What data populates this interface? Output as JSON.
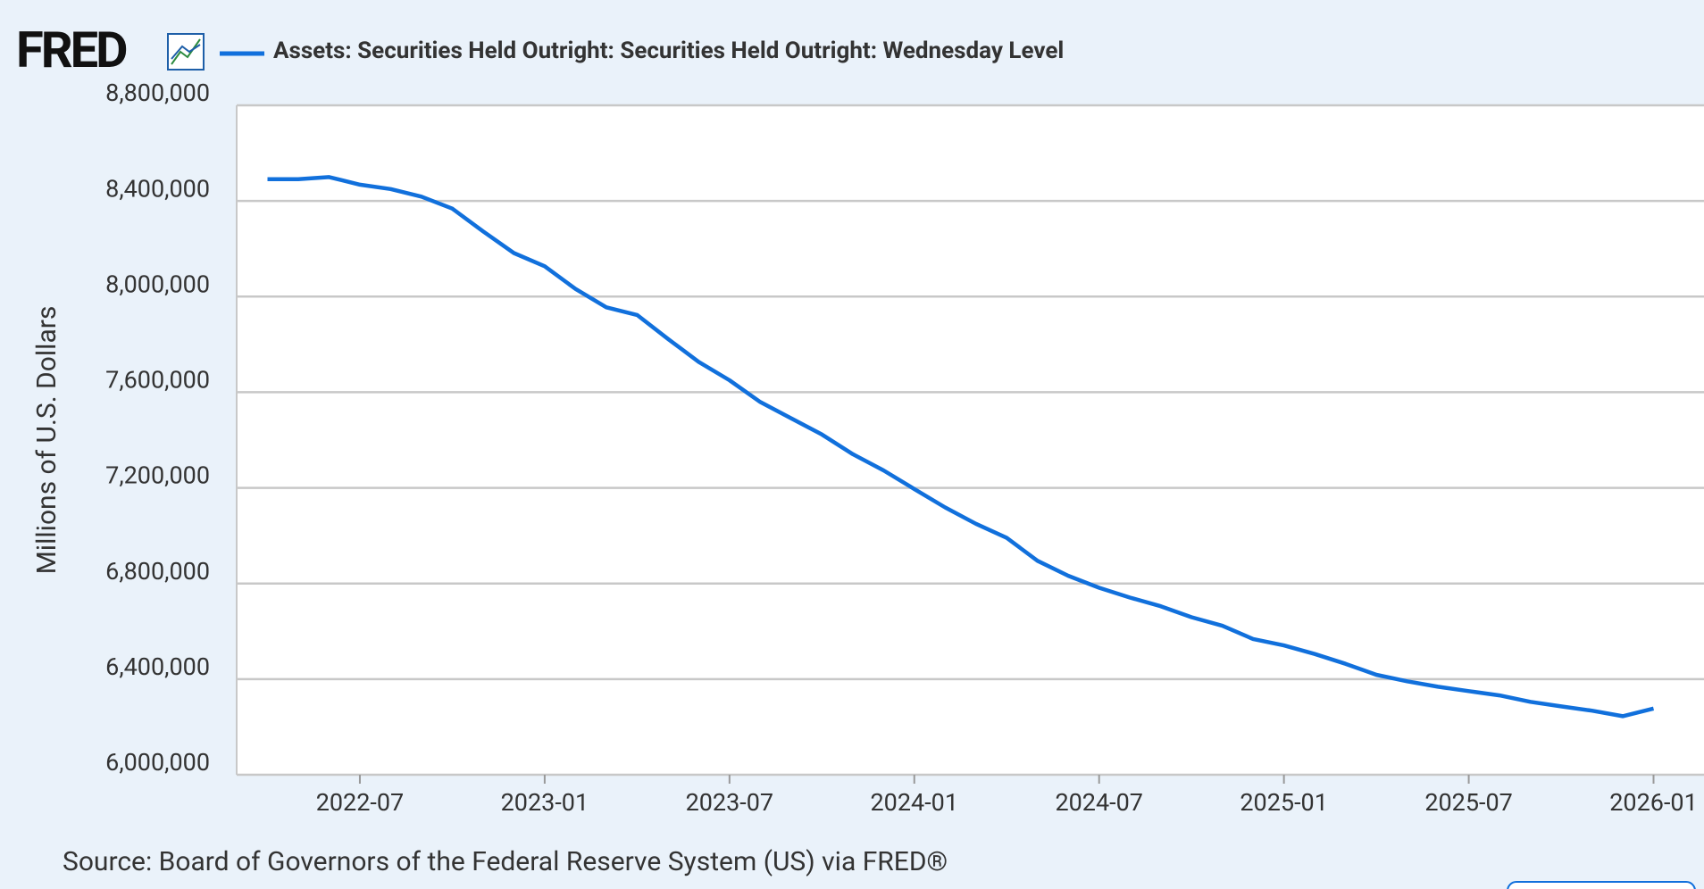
{
  "logo": "FRED",
  "source": "Source: Board of Governors of the Federal Reserve System (US) via FRED®",
  "chart_data": {
    "type": "line",
    "y_label": "Millions of U.S. Dollars",
    "x": [
      "2022-04",
      "2022-05",
      "2022-06",
      "2022-07",
      "2022-08",
      "2022-09",
      "2022-10",
      "2022-11",
      "2022-12",
      "2023-01",
      "2023-02",
      "2023-03",
      "2023-04",
      "2023-05",
      "2023-06",
      "2023-07",
      "2023-08",
      "2023-09",
      "2023-10",
      "2023-11",
      "2023-12",
      "2024-01",
      "2024-02",
      "2024-03",
      "2024-04",
      "2024-05",
      "2024-06",
      "2024-07",
      "2024-08",
      "2024-09",
      "2024-10",
      "2024-11",
      "2024-12",
      "2025-01",
      "2025-02",
      "2025-03",
      "2025-04",
      "2025-05",
      "2025-06",
      "2025-07",
      "2025-08",
      "2025-09",
      "2025-10",
      "2025-11",
      "2025-12",
      "2026-01"
    ],
    "series": [
      {
        "name": "Assets: Securities Held Outright: Securities Held Outright: Wednesday Level",
        "color": "#1170dc",
        "values": [
          8491000,
          8491000,
          8500000,
          8468000,
          8450000,
          8418000,
          8368000,
          8273000,
          8182000,
          8127000,
          8032000,
          7955000,
          7923000,
          7823000,
          7727000,
          7650000,
          7559000,
          7491000,
          7423000,
          7341000,
          7273000,
          7195000,
          7118000,
          7050000,
          6991000,
          6895000,
          6832000,
          6782000,
          6741000,
          6705000,
          6659000,
          6623000,
          6568000,
          6541000,
          6505000,
          6464000,
          6418000,
          6391000,
          6368000,
          6350000,
          6332000,
          6305000,
          6286000,
          6268000,
          6245000,
          6277000
        ]
      }
    ],
    "xlim": [
      "2022-03",
      "2026-02"
    ],
    "xticks": [
      "2022-07",
      "2023-01",
      "2023-07",
      "2024-01",
      "2024-07",
      "2025-01",
      "2025-07",
      "2026-01"
    ],
    "ylim": [
      6000000,
      8800000
    ],
    "yticks": [
      {
        "value": 6000000,
        "label": "6,000,000"
      },
      {
        "value": 6400000,
        "label": "6,400,000"
      },
      {
        "value": 6800000,
        "label": "6,800,000"
      },
      {
        "value": 7200000,
        "label": "7,200,000"
      },
      {
        "value": 7600000,
        "label": "7,600,000"
      },
      {
        "value": 8000000,
        "label": "8,000,000"
      },
      {
        "value": 8400000,
        "label": "8,400,000"
      },
      {
        "value": 8800000,
        "label": "8,800,000"
      }
    ],
    "grid": true
  }
}
